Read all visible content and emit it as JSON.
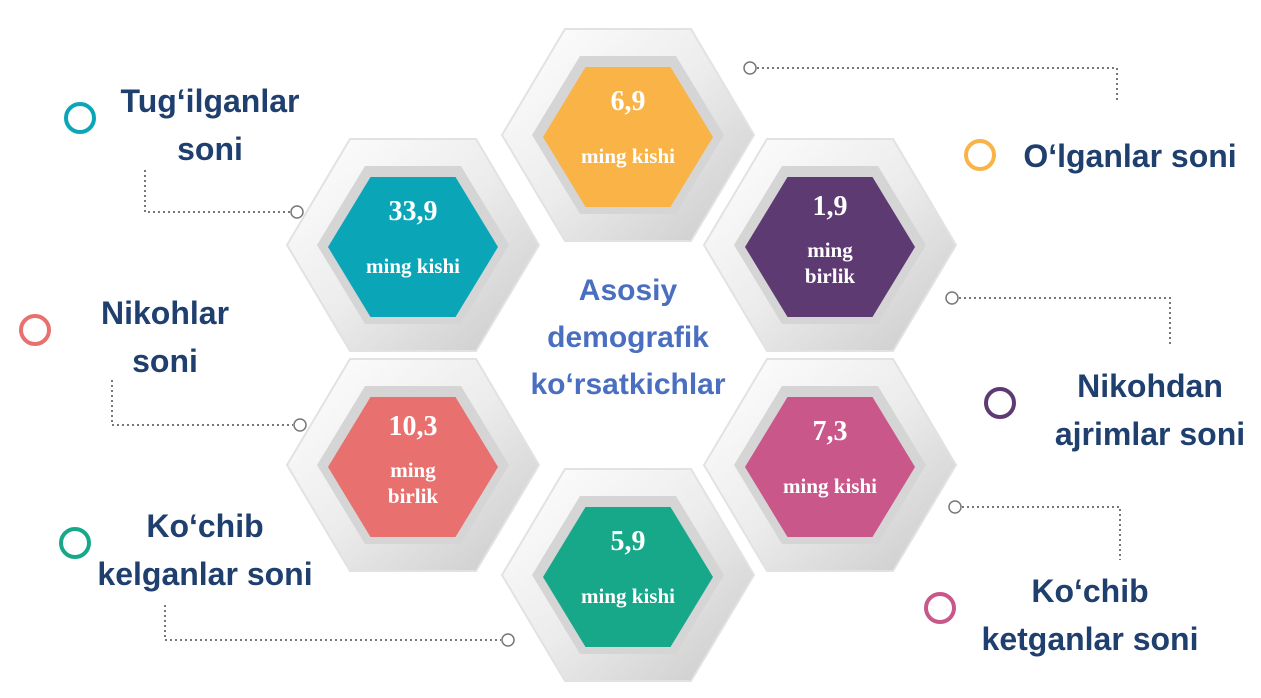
{
  "title_lines": [
    "Asosiy",
    "demografik",
    "ko‘rsatkichlar"
  ],
  "items": [
    {
      "label_lines": [
        "Tug‘ilganlar",
        "soni"
      ],
      "value": "33,9",
      "unit_lines": [
        "ming kishi"
      ],
      "color": "#0aa6b8"
    },
    {
      "label_lines": [
        "O‘lganlar soni"
      ],
      "value": "6,9",
      "unit_lines": [
        "ming kishi"
      ],
      "color": "#f9b347"
    },
    {
      "label_lines": [
        "Nikohlar",
        "soni"
      ],
      "value": "10,3",
      "unit_lines": [
        "ming",
        "birlik"
      ],
      "color": "#e8706f"
    },
    {
      "label_lines": [
        "Nikohdan",
        "ajrimlar soni"
      ],
      "value": "1,9",
      "unit_lines": [
        "ming",
        "birlik"
      ],
      "color": "#5e3a72"
    },
    {
      "label_lines": [
        "Ko‘chib",
        "kelganlar soni"
      ],
      "value": "5,9",
      "unit_lines": [
        "ming kishi"
      ],
      "color": "#17a88a"
    },
    {
      "label_lines": [
        "Ko‘chib",
        "ketganlar soni"
      ],
      "value": "7,3",
      "unit_lines": [
        "ming kishi"
      ],
      "color": "#c9578a"
    }
  ]
}
